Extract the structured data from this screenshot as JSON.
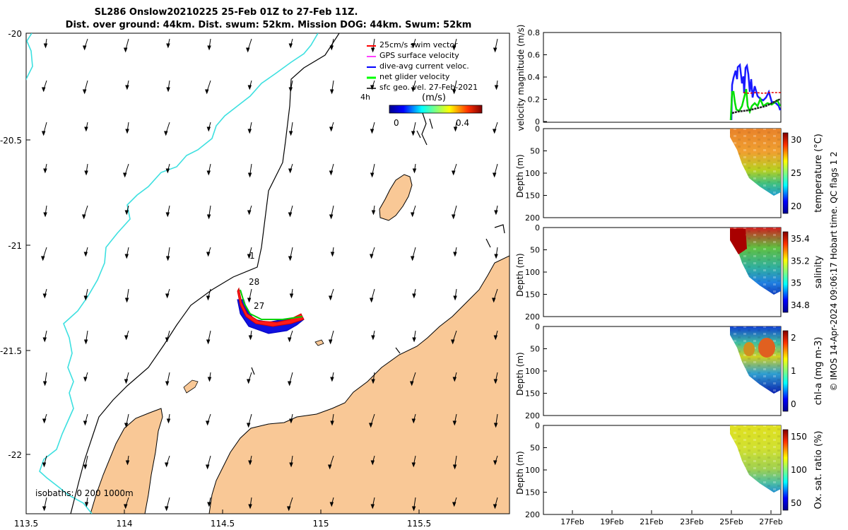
{
  "title": {
    "line1": "SL286 Onslow20210225 25-Feb 01Z to 27-Feb 11Z.",
    "line2": "Dist. over ground: 44km. Dist. swum: 52km. Mission DOG: 44km. Swum: 52km"
  },
  "map": {
    "x_ticks": [
      "113.5",
      "114",
      "114.5",
      "115",
      "115.5"
    ],
    "y_ticks": [
      "-20",
      "-20.5",
      "-21",
      "-21.5",
      "-22"
    ],
    "legend": [
      {
        "label": "25cm/s swim vector",
        "color": "#ff0000"
      },
      {
        "label": "GPS surface velocity",
        "color": "#ff00ff"
      },
      {
        "label": "dive-avg current veloc.",
        "color": "#0000ff"
      },
      {
        "label": "net glider velocity",
        "color": "#00ff00"
      },
      {
        "label": "sfc geo. vel. 27-Feb-2021",
        "color": "#000000"
      }
    ],
    "colorbar_title": "(m/s)",
    "colorbar_ticks": [
      "0",
      "0.4"
    ],
    "time_label": "4h",
    "isobaths_label": "isobaths: 0   200  1000m",
    "day_labels": [
      "1",
      "28",
      "27"
    ],
    "coast_color": "#f9c896",
    "isobath_color": "#3de0e0"
  },
  "side": {
    "velocity": {
      "ylabel": "velocity magnitude (m/s)",
      "y_ticks": [
        "0",
        "0.2",
        "0.4",
        "0.6",
        "0.8"
      ]
    },
    "depth_ticks": [
      "0",
      "50",
      "100",
      "150",
      "200"
    ],
    "depth_label": "Depth (m)",
    "panels": [
      {
        "label": "temperature (°C)",
        "ticks": [
          "30",
          "25",
          "20"
        ]
      },
      {
        "label": "salinity",
        "ticks": [
          "35.4",
          "35.2",
          "35",
          "34.8"
        ]
      },
      {
        "label": "chl-a (mg m-3)",
        "ticks": [
          "2",
          "1",
          "0"
        ]
      },
      {
        "label": "Ox. sat. ratio (%)",
        "ticks": [
          "150",
          "100",
          "50"
        ]
      }
    ],
    "x_ticks": [
      "17Feb",
      "19Feb",
      "21Feb",
      "23Feb",
      "25Feb",
      "27Feb"
    ],
    "credit": "© IMOS 14-Apr-2024 09:06:17 Hobart time. QC flags 1  2"
  }
}
